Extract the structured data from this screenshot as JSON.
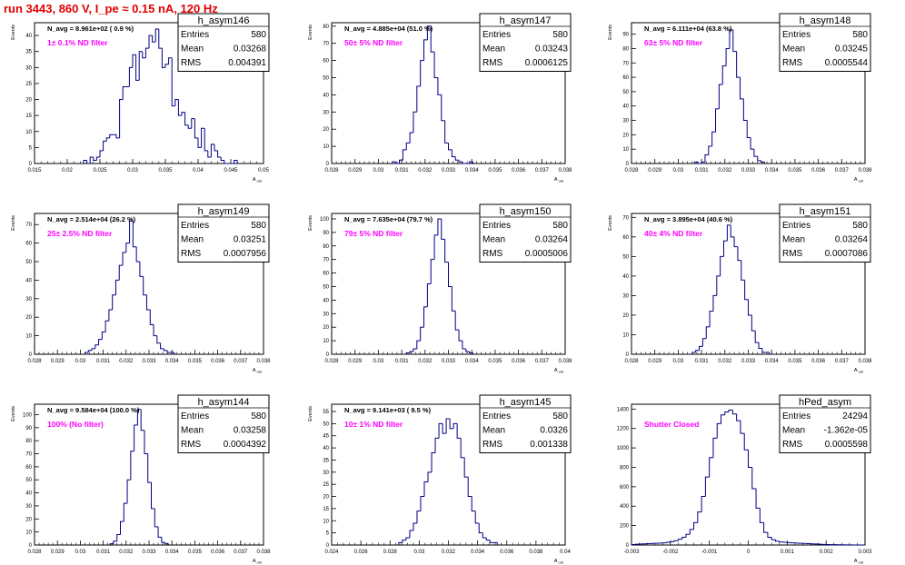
{
  "page_title": "run 3443,   860 V, I_pe ≈ 0.15 nA, 120 Hz",
  "chart_data": [
    {
      "type": "bar",
      "stats_title": "h_asym146",
      "stats": [
        [
          "Entries",
          "580"
        ],
        [
          "Mean",
          "0.03268"
        ],
        [
          "RMS",
          "0.004391"
        ]
      ],
      "navg": "N_avg = 8.961e+02 ( 0.9 %)",
      "filter": "1± 0.1% ND filter",
      "ylabel": "Events",
      "xlabel": "A_uid",
      "xlim": [
        0.015,
        0.05
      ],
      "ylim": [
        0,
        44
      ],
      "xticks": [
        "0.015",
        "0.02",
        "0.025",
        "0.03",
        "0.035",
        "0.04",
        "0.045",
        "0.05"
      ],
      "yticks": [
        "0",
        "5",
        "10",
        "15",
        "20",
        "25",
        "30",
        "35",
        "40"
      ],
      "bins": {
        "start": 0.0225,
        "width": 0.0005,
        "values": [
          1,
          0,
          2,
          1,
          2,
          4,
          7,
          8,
          9,
          9,
          8,
          20,
          24,
          24,
          30,
          34,
          26,
          35,
          33,
          36,
          40,
          38,
          42,
          36,
          30,
          31,
          33,
          18,
          20,
          15,
          16,
          12,
          11,
          14,
          8,
          5,
          11,
          4,
          2,
          6,
          4,
          2,
          1,
          0,
          0,
          0,
          1
        ]
      }
    },
    {
      "type": "bar",
      "stats_title": "h_asym147",
      "stats": [
        [
          "Entries",
          "580"
        ],
        [
          "Mean",
          "0.03243"
        ],
        [
          "RMS",
          "0.0006125"
        ]
      ],
      "navg": "N_avg = 4.885e+04 (51.0 %)",
      "filter": "50± 5% ND filter",
      "ylabel": "Events",
      "xlabel": "A_uid",
      "xlim": [
        0.028,
        0.038
      ],
      "ylim": [
        0,
        82
      ],
      "xticks": [
        "0.028",
        "0.029",
        "0.03",
        "0.031",
        "0.032",
        "0.033",
        "0.034",
        "0.035",
        "0.036",
        "0.037",
        "0.038"
      ],
      "yticks": [
        "0",
        "10",
        "20",
        "30",
        "40",
        "50",
        "60",
        "70",
        "80"
      ],
      "bins": {
        "start": 0.0306,
        "width": 0.00015,
        "values": [
          1,
          0,
          2,
          8,
          12,
          18,
          30,
          45,
          60,
          72,
          80,
          65,
          50,
          40,
          25,
          12,
          8,
          4,
          2,
          1,
          0,
          0,
          1
        ]
      }
    },
    {
      "type": "bar",
      "stats_title": "h_asym148",
      "stats": [
        [
          "Entries",
          "580"
        ],
        [
          "Mean",
          "0.03245"
        ],
        [
          "RMS",
          "0.0005544"
        ]
      ],
      "navg": "N_avg = 6.111e+04 (63.8 %)",
      "filter": "63± 5% ND filter",
      "ylabel": "Events",
      "xlabel": "A_uid",
      "xlim": [
        0.028,
        0.038
      ],
      "ylim": [
        0,
        98
      ],
      "xticks": [
        "0.028",
        "0.029",
        "0.03",
        "0.031",
        "0.032",
        "0.033",
        "0.034",
        "0.035",
        "0.036",
        "0.037",
        "0.038"
      ],
      "yticks": [
        "0",
        "10",
        "20",
        "30",
        "40",
        "50",
        "60",
        "70",
        "80",
        "90"
      ],
      "bins": {
        "start": 0.0307,
        "width": 0.00015,
        "values": [
          1,
          0,
          1,
          6,
          12,
          22,
          38,
          55,
          68,
          80,
          93,
          78,
          60,
          45,
          30,
          18,
          10,
          5,
          2,
          1
        ]
      }
    },
    {
      "type": "bar",
      "stats_title": "h_asym149",
      "stats": [
        [
          "Entries",
          "580"
        ],
        [
          "Mean",
          "0.03251"
        ],
        [
          "RMS",
          "0.0007956"
        ]
      ],
      "navg": "N_avg = 2.514e+04 (26.2 %)",
      "filter": "25± 2.5% ND filter",
      "ylabel": "Events",
      "xlabel": "A_uid",
      "xlim": [
        0.028,
        0.038
      ],
      "ylim": [
        0,
        76
      ],
      "xticks": [
        "0.028",
        "0.029",
        "0.03",
        "0.031",
        "0.032",
        "0.033",
        "0.034",
        "0.035",
        "0.036",
        "0.037",
        "0.038"
      ],
      "yticks": [
        "0",
        "10",
        "20",
        "30",
        "40",
        "50",
        "60",
        "70"
      ],
      "bins": {
        "start": 0.0302,
        "width": 0.00015,
        "values": [
          1,
          2,
          3,
          5,
          8,
          12,
          18,
          24,
          32,
          40,
          48,
          55,
          60,
          72,
          58,
          50,
          42,
          32,
          24,
          16,
          10,
          6,
          3,
          2,
          1,
          1
        ]
      }
    },
    {
      "type": "bar",
      "stats_title": "h_asym150",
      "stats": [
        [
          "Entries",
          "580"
        ],
        [
          "Mean",
          "0.03264"
        ],
        [
          "RMS",
          "0.0005006"
        ]
      ],
      "navg": "N_avg = 7.635e+04 (79.7 %)",
      "filter": "79± 5% ND filter",
      "ylabel": "Events",
      "xlabel": "A_uid",
      "xlim": [
        0.028,
        0.038
      ],
      "ylim": [
        0,
        104
      ],
      "xticks": [
        "0.028",
        "0.029",
        "0.03",
        "0.031",
        "0.032",
        "0.033",
        "0.034",
        "0.035",
        "0.036",
        "0.037",
        "0.038"
      ],
      "yticks": [
        "0",
        "10",
        "20",
        "30",
        "40",
        "50",
        "60",
        "70",
        "80",
        "90",
        "100"
      ],
      "bins": {
        "start": 0.0312,
        "width": 0.00015,
        "values": [
          1,
          2,
          4,
          10,
          20,
          35,
          52,
          70,
          88,
          100,
          85,
          68,
          50,
          32,
          18,
          10,
          4,
          2,
          1
        ]
      }
    },
    {
      "type": "bar",
      "stats_title": "h_asym151",
      "stats": [
        [
          "Entries",
          "580"
        ],
        [
          "Mean",
          "0.03264"
        ],
        [
          "RMS",
          "0.0007086"
        ]
      ],
      "navg": "N_avg = 3.895e+04 (40.6 %)",
      "filter": "40± 4% ND filter",
      "ylabel": "Events",
      "xlabel": "A_uid",
      "xlim": [
        0.028,
        0.038
      ],
      "ylim": [
        0,
        72
      ],
      "xticks": [
        "0.028",
        "0.029",
        "0.03",
        "0.031",
        "0.032",
        "0.033",
        "0.034",
        "0.035",
        "0.036",
        "0.037",
        "0.038"
      ],
      "yticks": [
        "0",
        "10",
        "20",
        "30",
        "40",
        "50",
        "60",
        "70"
      ],
      "bins": {
        "start": 0.0306,
        "width": 0.00015,
        "values": [
          1,
          2,
          4,
          8,
          14,
          22,
          30,
          40,
          50,
          58,
          66,
          60,
          55,
          48,
          38,
          28,
          20,
          12,
          6,
          3,
          1,
          1
        ]
      }
    },
    {
      "type": "bar",
      "stats_title": "h_asym144",
      "stats": [
        [
          "Entries",
          "580"
        ],
        [
          "Mean",
          "0.03258"
        ],
        [
          "RMS",
          "0.0004392"
        ]
      ],
      "navg": "N_avg = 9.584e+04 (100.0 %)",
      "filter": "100% (No filter)",
      "ylabel": "Events",
      "xlabel": "A_uid",
      "xlim": [
        0.028,
        0.038
      ],
      "ylim": [
        0,
        108
      ],
      "xticks": [
        "0.028",
        "0.029",
        "0.03",
        "0.031",
        "0.032",
        "0.033",
        "0.034",
        "0.035",
        "0.036",
        "0.037",
        "0.038"
      ],
      "yticks": [
        "0",
        "10",
        "20",
        "30",
        "40",
        "50",
        "60",
        "70",
        "80",
        "90",
        "100"
      ],
      "bins": {
        "start": 0.0313,
        "width": 0.00015,
        "values": [
          1,
          3,
          8,
          18,
          32,
          50,
          72,
          92,
          104,
          88,
          70,
          48,
          28,
          14,
          6,
          2,
          1
        ]
      }
    },
    {
      "type": "bar",
      "stats_title": "h_asym145",
      "stats": [
        [
          "Entries",
          "580"
        ],
        [
          "Mean",
          "0.0326"
        ],
        [
          "RMS",
          "0.001338"
        ]
      ],
      "navg": "N_avg = 9.141e+03 ( 9.5 %)",
      "filter": "10± 1% ND filter",
      "ylabel": "Events",
      "xlabel": "A_uid",
      "xlim": [
        0.024,
        0.04
      ],
      "ylim": [
        0,
        58
      ],
      "xticks": [
        "0.024",
        "0.026",
        "0.028",
        "0.03",
        "0.032",
        "0.034",
        "0.036",
        "0.038",
        "0.04"
      ],
      "yticks": [
        "0",
        "5",
        "10",
        "15",
        "20",
        "25",
        "30",
        "35",
        "40",
        "45",
        "50",
        "55"
      ],
      "bins": {
        "start": 0.0286,
        "width": 0.00025,
        "values": [
          1,
          2,
          3,
          6,
          9,
          14,
          20,
          26,
          30,
          38,
          44,
          50,
          46,
          52,
          48,
          50,
          44,
          36,
          28,
          20,
          14,
          9,
          5,
          3,
          2,
          1,
          1
        ]
      }
    },
    {
      "type": "bar",
      "stats_title": "hPed_asym",
      "stats": [
        [
          "Entries",
          "24294"
        ],
        [
          "Mean",
          "-1.362e-05"
        ],
        [
          "RMS",
          "0.0005598"
        ]
      ],
      "navg": "",
      "filter": "Shutter Closed",
      "ylabel": "",
      "xlabel": "A_uid",
      "xlim": [
        -0.003,
        0.003
      ],
      "ylim": [
        0,
        1450
      ],
      "xticks": [
        "-0.003",
        "-0.002",
        "-0.001",
        "0",
        "0.001",
        "0.002",
        "0.003"
      ],
      "yticks": [
        "0",
        "200",
        "400",
        "600",
        "800",
        "1000",
        "1200",
        "1400"
      ],
      "bins": {
        "start": -0.003,
        "width": 0.0001,
        "values": [
          5,
          8,
          10,
          12,
          14,
          16,
          18,
          20,
          22,
          28,
          35,
          45,
          60,
          80,
          110,
          160,
          230,
          340,
          500,
          700,
          900,
          1100,
          1250,
          1340,
          1370,
          1390,
          1350,
          1280,
          1150,
          980,
          800,
          580,
          380,
          230,
          130,
          80,
          55,
          40,
          32,
          28,
          25,
          22,
          20,
          18,
          16,
          14,
          12,
          10,
          8,
          6,
          5,
          4,
          3,
          2,
          2,
          1,
          1,
          0,
          0,
          0
        ]
      }
    }
  ]
}
